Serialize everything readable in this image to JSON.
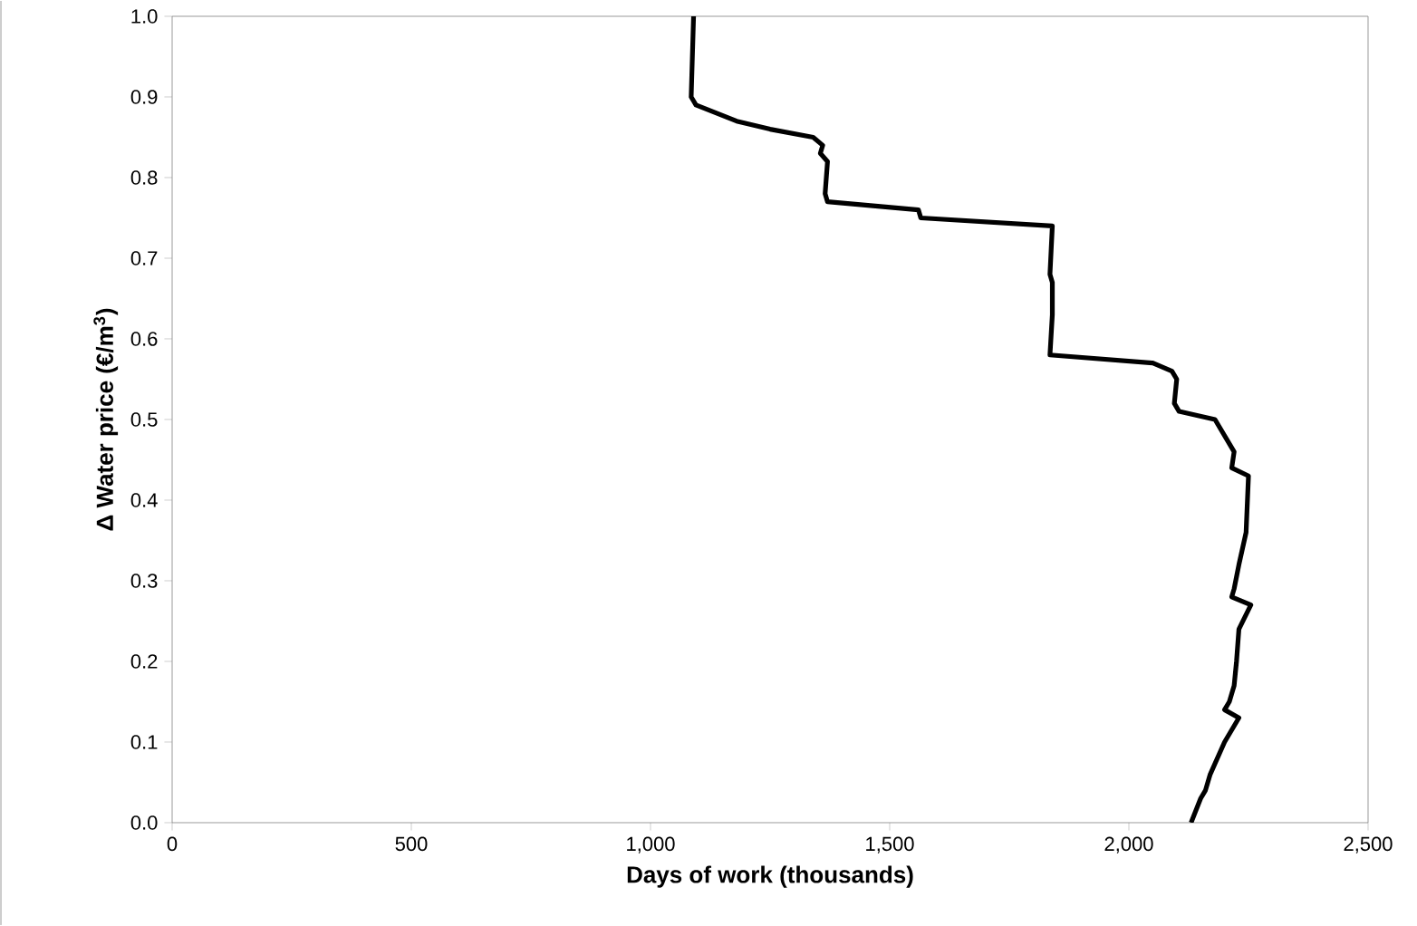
{
  "chart_data": {
    "type": "line",
    "xlabel": "Days of work (thousands)",
    "ylabel": "Δ Water price (€/m$^{3}$)",
    "xlim": [
      0,
      2500
    ],
    "ylim": [
      0,
      1
    ],
    "xticks": [
      0,
      500,
      {
        "value": 1000,
        "label": "1,000"
      },
      {
        "value": 1500,
        "label": "1,500"
      },
      {
        "value": 2000,
        "label": "2,000"
      },
      {
        "value": 2500,
        "label": "2,500"
      }
    ],
    "yticks": [
      {
        "value": 0,
        "label": "0.0"
      },
      {
        "value": 0.1,
        "label": "0.1"
      },
      {
        "value": 0.2,
        "label": "0.2"
      },
      {
        "value": 0.3,
        "label": "0.3"
      },
      {
        "value": 0.4,
        "label": "0.4"
      },
      {
        "value": 0.5,
        "label": "0.5"
      },
      {
        "value": 0.6,
        "label": "0.6"
      },
      {
        "value": 0.7,
        "label": "0.7"
      },
      {
        "value": 0.8,
        "label": "0.8"
      },
      {
        "value": 0.9,
        "label": "0.9"
      },
      {
        "value": 1,
        "label": "1.0"
      }
    ],
    "marker": "none",
    "line_style": "solid",
    "series": [
      {
        "color": "#000000",
        "x": [
          1090,
          1085,
          1095,
          1180,
          1250,
          1340,
          1360,
          1355,
          1370,
          1365,
          1370,
          1560,
          1565,
          1840,
          1835,
          1840,
          1840,
          1835,
          2050,
          2090,
          2100,
          2095,
          2105,
          2180,
          2220,
          2215,
          2250,
          2245,
          2230,
          2220,
          2215,
          2255,
          2230,
          2225,
          2220,
          2210,
          2200,
          2230,
          2200,
          2170,
          2160,
          2150,
          2130
        ],
        "values": [
          1.0,
          0.9,
          0.89,
          0.87,
          0.86,
          0.85,
          0.84,
          0.83,
          0.82,
          0.78,
          0.77,
          0.76,
          0.75,
          0.74,
          0.68,
          0.67,
          0.63,
          0.58,
          0.57,
          0.56,
          0.55,
          0.52,
          0.51,
          0.5,
          0.46,
          0.44,
          0.43,
          0.36,
          0.32,
          0.29,
          0.28,
          0.27,
          0.24,
          0.2,
          0.17,
          0.15,
          0.14,
          0.13,
          0.1,
          0.06,
          0.04,
          0.03,
          0.0
        ]
      }
    ]
  }
}
